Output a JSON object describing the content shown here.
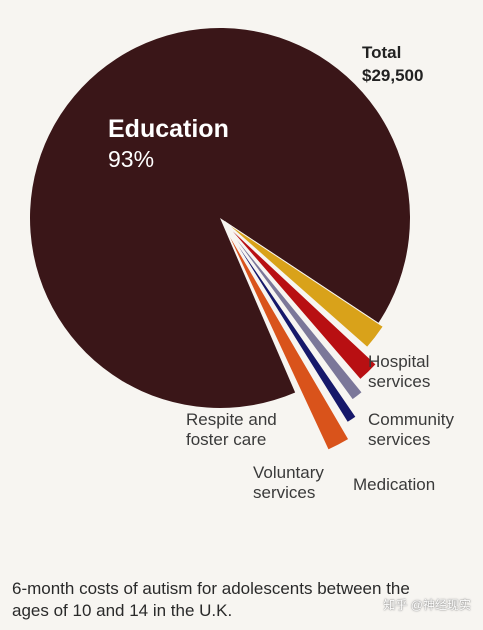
{
  "chart_data": {
    "type": "pie",
    "total_label": "Total",
    "total_value": "$29,500",
    "slices": [
      {
        "name": "Education",
        "value": 93,
        "label_value": "93%",
        "color": "#3a1618"
      },
      {
        "name": "Hospital services",
        "value": 2.2,
        "color": "#d9a21a",
        "label_lines": [
          "Hospital",
          "services"
        ]
      },
      {
        "name": "Community services",
        "value": 1.7,
        "color": "#b80f12",
        "label_lines": [
          "Community",
          "services"
        ]
      },
      {
        "name": "Medication",
        "value": 0.9,
        "color": "#7b7799",
        "label_lines": [
          "Medication"
        ]
      },
      {
        "name": "Voluntary services",
        "value": 0.7,
        "color": "#16186a",
        "label_lines": [
          "Voluntary",
          "services"
        ]
      },
      {
        "name": "Respite and foster care",
        "value": 1.5,
        "color": "#d9531b",
        "label_lines": [
          "Respite and",
          "foster care"
        ]
      }
    ]
  },
  "caption": {
    "line1": "6-month costs of autism for adolescents between the",
    "line2": "ages of 10 and 14 in the U.K."
  },
  "watermark": "知乎 @神经现实"
}
